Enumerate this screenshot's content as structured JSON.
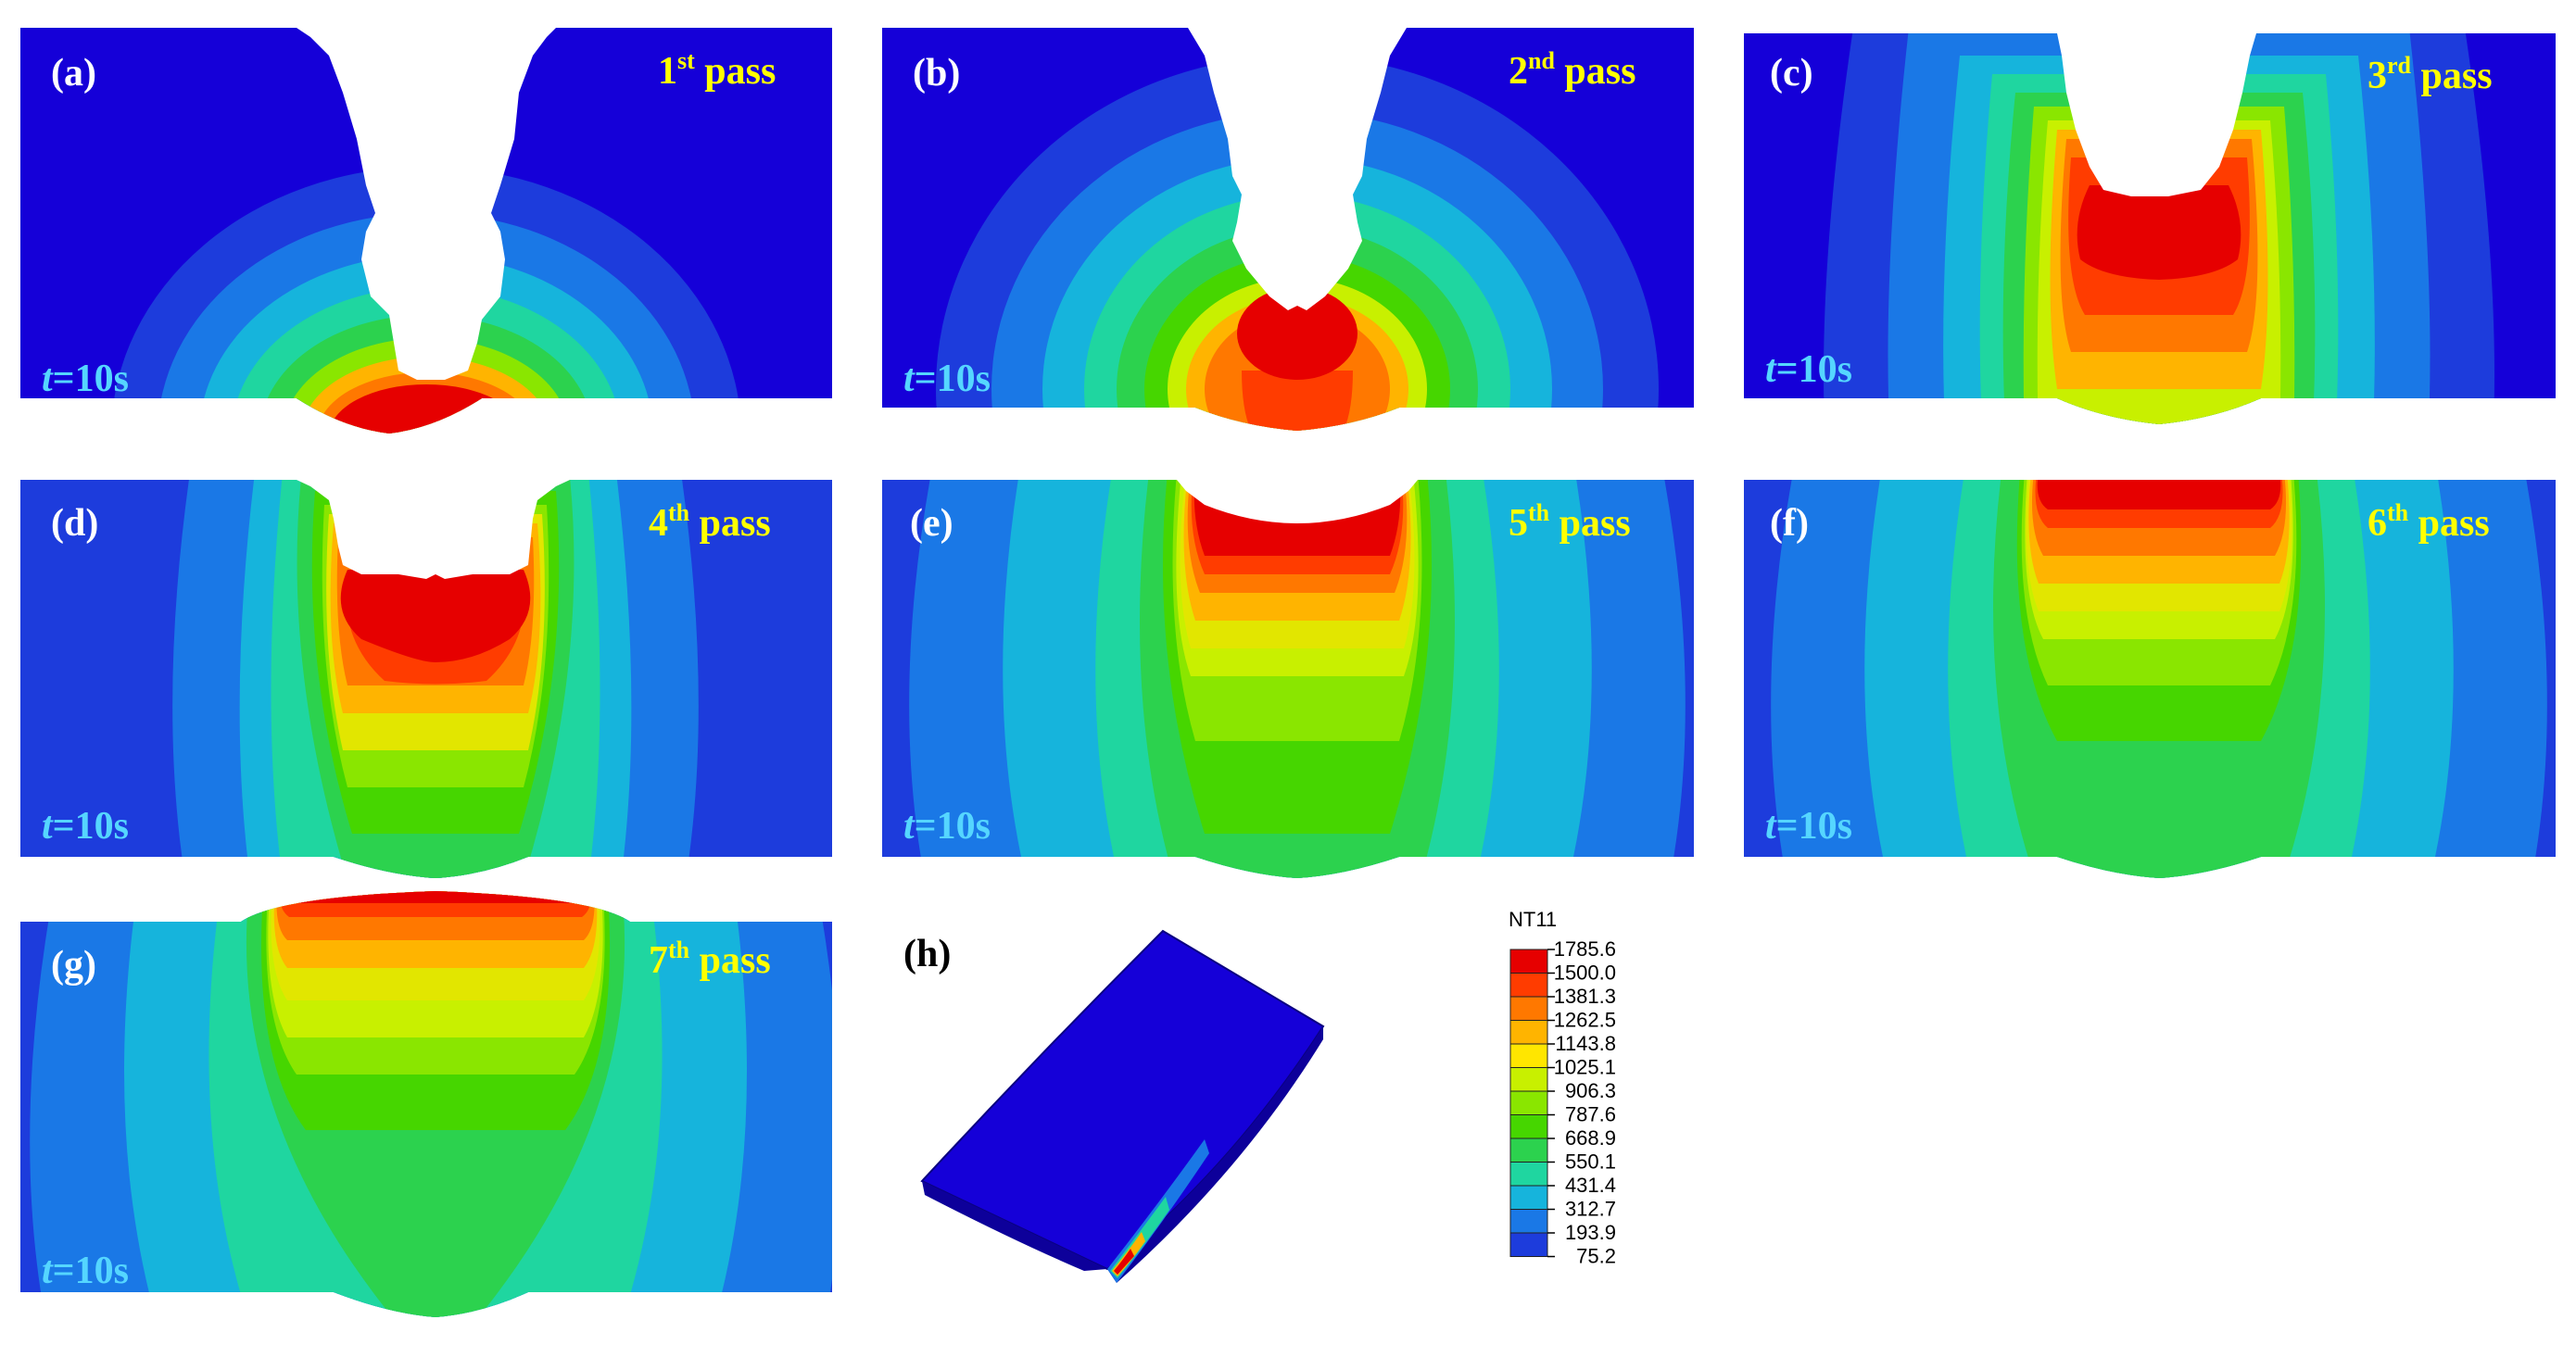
{
  "figure": {
    "panels": [
      {
        "id": "a",
        "label": "(a)",
        "pass_num": "1",
        "pass_sup": "st",
        "pass_word": "pass",
        "time_var": "t",
        "time_val": "=10s"
      },
      {
        "id": "b",
        "label": "(b)",
        "pass_num": "2",
        "pass_sup": "nd",
        "pass_word": "pass",
        "time_var": "t",
        "time_val": "=10s"
      },
      {
        "id": "c",
        "label": "(c)",
        "pass_num": "3",
        "pass_sup": "rd",
        "pass_word": "pass",
        "time_var": "t",
        "time_val": "=10s"
      },
      {
        "id": "d",
        "label": "(d)",
        "pass_num": "4",
        "pass_sup": "th",
        "pass_word": "pass",
        "time_var": "t",
        "time_val": "=10s"
      },
      {
        "id": "e",
        "label": "(e)",
        "pass_num": "5",
        "pass_sup": "th",
        "pass_word": "pass",
        "time_var": "t",
        "time_val": "=10s"
      },
      {
        "id": "f",
        "label": "(f)",
        "pass_num": "6",
        "pass_sup": "th",
        "pass_word": "pass",
        "time_var": "t",
        "time_val": "=10s"
      },
      {
        "id": "g",
        "label": "(g)",
        "pass_num": "7",
        "pass_sup": "th",
        "pass_word": "pass",
        "time_var": "t",
        "time_val": "=10s"
      }
    ],
    "h_label": "(h)",
    "legend": {
      "title": "NT11",
      "values": [
        "1785.6",
        "1500.0",
        "1381.3",
        "1262.5",
        "1143.8",
        "1025.1",
        "906.3",
        "787.6",
        "668.9",
        "550.1",
        "431.4",
        "312.7",
        "193.9",
        "75.2"
      ],
      "colors": [
        "#e60000",
        "#ff3c00",
        "#ff7800",
        "#ffb400",
        "#ffe600",
        "#c8f000",
        "#8ae600",
        "#46d600",
        "#2cd24e",
        "#1fd6a0",
        "#16b4dc",
        "#1a78e6",
        "#1d3cdc",
        "#1500d8"
      ]
    },
    "colors": {
      "base": "#1500d8",
      "field": [
        "#1d3cdc",
        "#1a78e6",
        "#16b4dc",
        "#1fd6a0",
        "#2cd24e",
        "#46d600",
        "#8ae600",
        "#c8f000",
        "#e2e600",
        "#ffb400",
        "#ff7800",
        "#ff3c00",
        "#e60000"
      ],
      "label_white": "#ffffff",
      "pass_yellow": "#ffff00",
      "time_cyan": "#55d6ff"
    }
  }
}
